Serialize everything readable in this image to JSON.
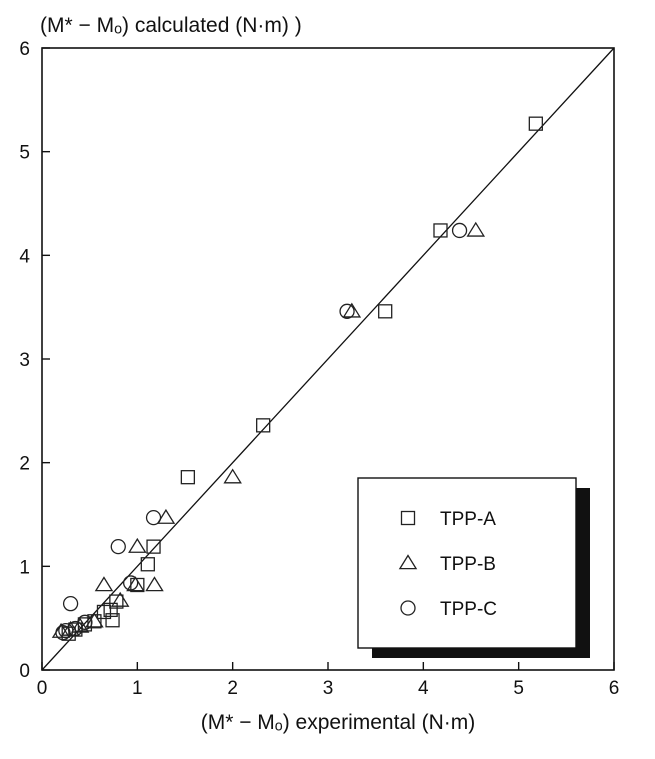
{
  "chart_data": {
    "type": "scatter",
    "title": "",
    "ylabel": "(M* − Mₒ) calculated (N·m)     )",
    "xlabel": "(M* − Mₒ) experimental (N·m)",
    "xlim": [
      0,
      6
    ],
    "ylim": [
      0,
      6
    ],
    "xticks": [
      "0",
      "1",
      "2",
      "3",
      "4",
      "5",
      "6"
    ],
    "yticks": [
      "0",
      "1",
      "2",
      "3",
      "4",
      "5",
      "6"
    ],
    "grid": false,
    "legend_position": "bottom-right",
    "reference_line": {
      "x": [
        0,
        6
      ],
      "y": [
        0,
        6
      ]
    },
    "series": [
      {
        "name": "TPP-A",
        "marker": "square",
        "points": [
          [
            5.18,
            5.27
          ],
          [
            4.18,
            4.24
          ],
          [
            3.6,
            3.46
          ],
          [
            2.32,
            2.36
          ],
          [
            1.53,
            1.86
          ],
          [
            1.17,
            1.19
          ],
          [
            1.11,
            1.02
          ],
          [
            1.0,
            0.82
          ],
          [
            0.78,
            0.66
          ],
          [
            0.74,
            0.48
          ],
          [
            0.72,
            0.58
          ],
          [
            0.65,
            0.56
          ],
          [
            0.55,
            0.47
          ],
          [
            0.45,
            0.44
          ],
          [
            0.35,
            0.39
          ],
          [
            0.28,
            0.35
          ]
        ]
      },
      {
        "name": "TPP-B",
        "marker": "triangle",
        "points": [
          [
            4.55,
            4.24
          ],
          [
            3.25,
            3.46
          ],
          [
            2.0,
            1.86
          ],
          [
            1.3,
            1.47
          ],
          [
            1.0,
            1.19
          ],
          [
            1.18,
            0.82
          ],
          [
            0.65,
            0.82
          ],
          [
            0.82,
            0.67
          ],
          [
            0.55,
            0.47
          ],
          [
            0.4,
            0.42
          ],
          [
            0.3,
            0.39
          ],
          [
            0.2,
            0.37
          ],
          [
            0.98,
            0.82
          ]
        ]
      },
      {
        "name": "TPP-C",
        "marker": "circle",
        "points": [
          [
            4.38,
            4.24
          ],
          [
            3.2,
            3.46
          ],
          [
            1.17,
            1.47
          ],
          [
            0.8,
            1.19
          ],
          [
            0.93,
            0.84
          ],
          [
            0.3,
            0.64
          ],
          [
            0.45,
            0.46
          ],
          [
            0.35,
            0.4
          ],
          [
            0.25,
            0.38
          ],
          [
            0.22,
            0.36
          ]
        ]
      }
    ]
  }
}
